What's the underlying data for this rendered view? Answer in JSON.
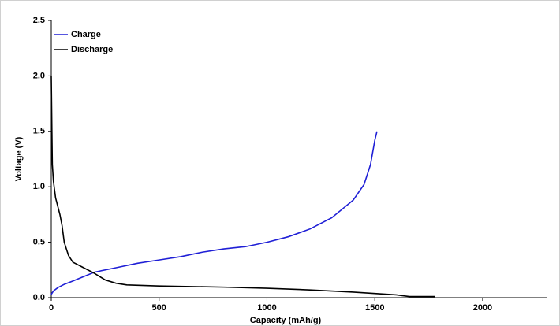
{
  "chart_data": {
    "type": "line",
    "xlabel": "Capacity (mAh/g)",
    "ylabel": "Voltage (V)",
    "xlim": [
      0,
      2300
    ],
    "xticks": [
      0,
      500,
      1000,
      1500,
      2000
    ],
    "ylim": [
      0,
      2.5
    ],
    "yticks": [
      {
        "value": 0,
        "label": "0.0"
      },
      0.5,
      {
        "value": 1,
        "label": "1.0"
      },
      1.5,
      {
        "value": 2,
        "label": "2.0"
      },
      2.5
    ],
    "legend": "top-left",
    "series": [
      {
        "name": "Charge",
        "color": "#1f1fd6",
        "x": [
          0,
          10,
          30,
          60,
          100,
          150,
          200,
          300,
          400,
          500,
          600,
          700,
          800,
          900,
          1000,
          1100,
          1200,
          1300,
          1400,
          1450,
          1480,
          1500,
          1510
        ],
        "values": [
          0.03,
          0.06,
          0.09,
          0.12,
          0.15,
          0.19,
          0.23,
          0.27,
          0.31,
          0.34,
          0.37,
          0.41,
          0.44,
          0.46,
          0.5,
          0.55,
          0.62,
          0.72,
          0.88,
          1.02,
          1.2,
          1.42,
          1.5
        ]
      },
      {
        "name": "Discharge",
        "color": "#000000",
        "x": [
          0,
          3,
          5,
          10,
          20,
          40,
          50,
          60,
          80,
          100,
          150,
          200,
          250,
          300,
          350,
          500,
          800,
          1000,
          1200,
          1400,
          1600,
          1660,
          1780
        ],
        "values": [
          2.0,
          1.5,
          1.2,
          1.05,
          0.9,
          0.75,
          0.65,
          0.5,
          0.38,
          0.32,
          0.27,
          0.22,
          0.16,
          0.13,
          0.115,
          0.105,
          0.095,
          0.085,
          0.07,
          0.05,
          0.025,
          0.01,
          0.01
        ]
      }
    ]
  }
}
